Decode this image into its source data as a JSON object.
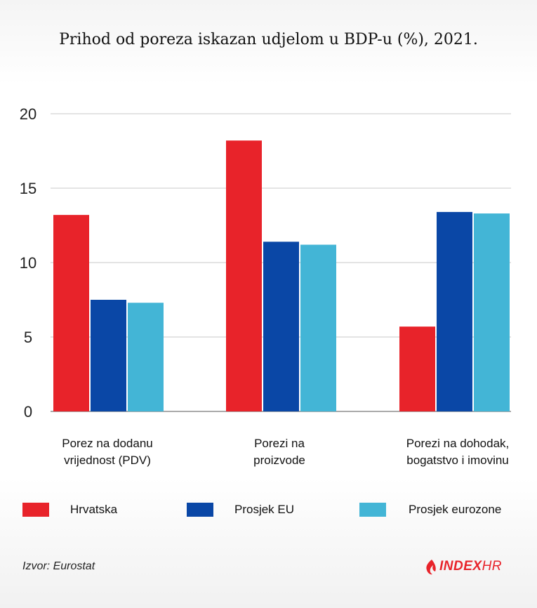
{
  "chart_data": {
    "type": "bar",
    "title": "Prihod od poreza iskazan udjelom u BDP-u (%), 2021.",
    "categories": [
      "Porez na dodanu\nvrijednost (PDV)",
      "Porezi na\nproizvode",
      "Porezi na dohodak,\nbogatstvo i imovinu"
    ],
    "series": [
      {
        "name": "Hrvatska",
        "values": [
          13.2,
          18.2,
          5.7
        ],
        "color": "#e8232a"
      },
      {
        "name": "Prosjek EU",
        "values": [
          7.5,
          11.4,
          13.4
        ],
        "color": "#0a47a6"
      },
      {
        "name": "Prosjek eurozone",
        "values": [
          7.3,
          11.2,
          13.3
        ],
        "color": "#43b5d6"
      }
    ],
    "ylim": [
      0,
      20
    ],
    "yticks": [
      0,
      5,
      10,
      15,
      20
    ],
    "ytick_labels": [
      "0",
      "5",
      "10",
      "15",
      "20"
    ],
    "grid": true,
    "legend_position": "bottom"
  },
  "source": "Izvor: Eurostat",
  "logo": {
    "text_main": "INDEX",
    "text_suffix": "HR",
    "icon": "flame-icon",
    "color": "#e8232a"
  }
}
